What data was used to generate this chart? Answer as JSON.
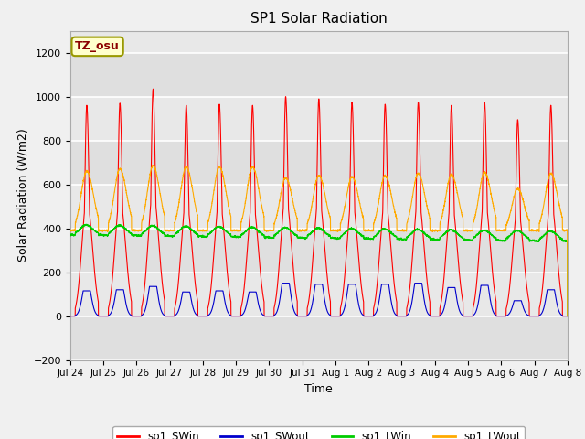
{
  "title": "SP1 Solar Radiation",
  "xlabel": "Time",
  "ylabel": "Solar Radiation (W/m2)",
  "ylim": [
    -200,
    1300
  ],
  "yticks": [
    -200,
    0,
    200,
    400,
    600,
    800,
    1000,
    1200
  ],
  "fig_bg_color": "#f0f0f0",
  "plot_bg_color": "#e8e8e8",
  "grid_color": "#ffffff",
  "line_colors": {
    "SWin": "#ff0000",
    "SWout": "#0000cc",
    "LWin": "#00cc00",
    "LWout": "#ffaa00"
  },
  "legend_labels": [
    "sp1_SWin",
    "sp1_SWout",
    "sp1_LWin",
    "sp1_LWout"
  ],
  "tz_label": "TZ_osu",
  "n_days": 15
}
